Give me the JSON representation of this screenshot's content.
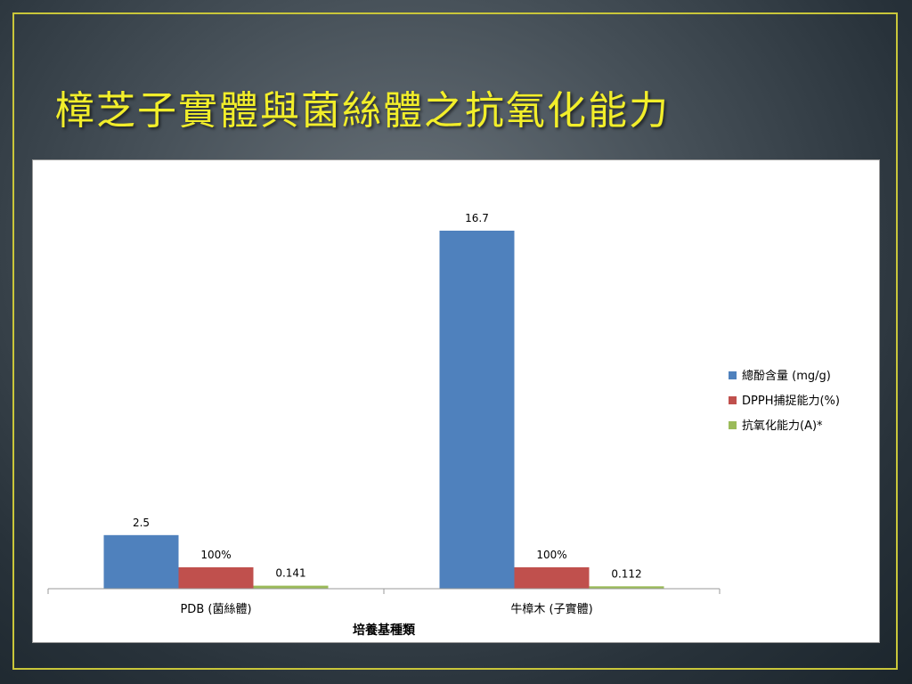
{
  "slide": {
    "title": "樟芝子實體與菌絲體之抗氧化能力",
    "accent_color": "#c9c63a",
    "title_color": "#f2ee2a"
  },
  "chart_data": {
    "type": "bar",
    "categories": [
      "PDB (菌絲體)",
      "牛樟木 (子實體)"
    ],
    "xlabel": "培養基種類",
    "ylabel": "",
    "legend_position": "right",
    "grid": false,
    "series": [
      {
        "name": "總酚含量 (mg/g)",
        "color": "#4f81bd",
        "values": [
          2.5,
          16.7
        ],
        "labels": [
          "2.5",
          "16.7"
        ]
      },
      {
        "name": "DPPH捕捉能力(%)",
        "color": "#c0504d",
        "values": [
          1.0,
          1.0
        ],
        "labels": [
          "100%",
          "100%"
        ]
      },
      {
        "name": "抗氧化能力(A)*",
        "color": "#9bbb59",
        "values": [
          0.141,
          0.112
        ],
        "labels": [
          "0.141",
          "0.112"
        ]
      }
    ]
  }
}
